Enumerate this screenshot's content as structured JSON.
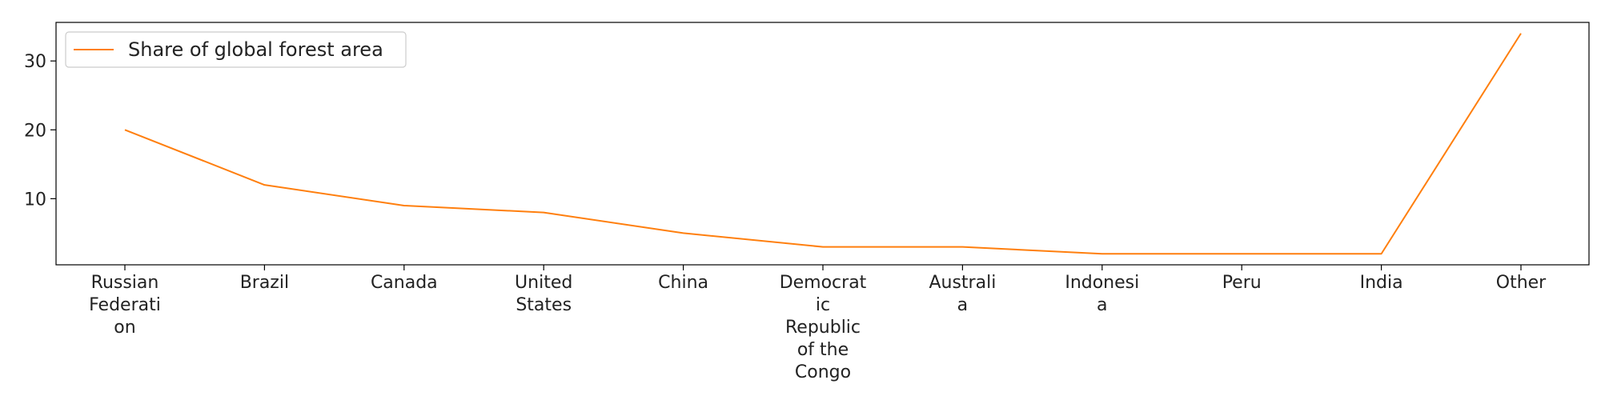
{
  "chart_data": {
    "type": "line",
    "title": "",
    "xlabel": "",
    "ylabel": "",
    "categories": [
      "Russian Federation",
      "Brazil",
      "Canada",
      "United States",
      "China",
      "Democratic Republic of the Congo",
      "Australia",
      "Indonesia",
      "Peru",
      "India",
      "Other"
    ],
    "category_tick_lines": [
      [
        "Russian",
        "Federati",
        "on"
      ],
      [
        "Brazil"
      ],
      [
        "Canada"
      ],
      [
        "United",
        "States"
      ],
      [
        "China"
      ],
      [
        "Democrat",
        "ic",
        "Republic",
        "of the",
        "Congo"
      ],
      [
        "Australi",
        "a"
      ],
      [
        "Indonesi",
        "a"
      ],
      [
        "Peru"
      ],
      [
        "India"
      ],
      [
        "Other"
      ]
    ],
    "series": [
      {
        "name": "Share of global forest area",
        "color": "#ff7f0e",
        "values": [
          20,
          12,
          9,
          8,
          5,
          3,
          3,
          2,
          2,
          2,
          34
        ]
      }
    ],
    "y_ticks": [
      10,
      20,
      30
    ],
    "ylim": [
      0.4,
      35.6
    ],
    "grid": false,
    "legend_position": "top-left"
  }
}
